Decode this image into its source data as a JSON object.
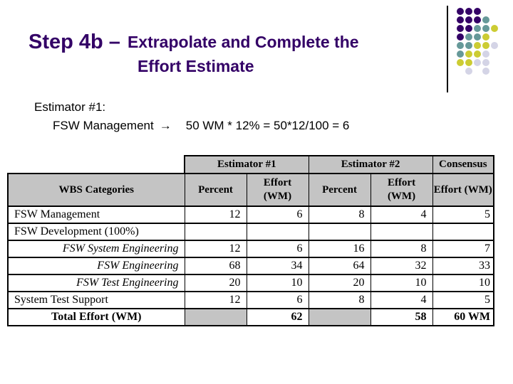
{
  "title": {
    "step": "Step 4b –",
    "line1": "Extrapolate and Complete the",
    "line2": "Effort Estimate"
  },
  "body": {
    "line1": "Estimator #1:",
    "line2_label": "FSW Management",
    "line2_arrow": "→",
    "line2_formula": "50 WM * 12% = 50*12/100 = 6"
  },
  "colors": {
    "title_text": "#330066",
    "header_fill": "#C4C4C4",
    "background": "#FFFFFF"
  },
  "decoration": {
    "dot_colors": {
      "purple": "#330066",
      "teal": "#669999",
      "yellow": "#CCCC33",
      "lavender": "#D4D4E6"
    },
    "dot_rows": [
      [
        "purple",
        "purple",
        "purple",
        null,
        null
      ],
      [
        "purple",
        "purple",
        "purple",
        "teal",
        null
      ],
      [
        "purple",
        "purple",
        "teal",
        "teal",
        "yellow"
      ],
      [
        "purple",
        "teal",
        "teal",
        "yellow",
        null
      ],
      [
        "teal",
        "teal",
        "yellow",
        "yellow",
        "lavender"
      ],
      [
        "teal",
        "yellow",
        "yellow",
        "lavender",
        null
      ],
      [
        "yellow",
        "yellow",
        "lavender",
        "lavender",
        null
      ],
      [
        null,
        "lavender",
        null,
        "lavender",
        null
      ]
    ]
  },
  "table": {
    "group_headers": [
      {
        "label": "Estimator #1",
        "span": 2
      },
      {
        "label": "Estimator #2",
        "span": 2
      },
      {
        "label": "Consensus",
        "span": 1
      }
    ],
    "col_headers": [
      "WBS Categories",
      "Percent",
      "Effort\n(WM)",
      "Percent",
      "Effort\n(WM)",
      "Effort (WM)"
    ],
    "rows": [
      {
        "label": "FSW Management",
        "style": "normal",
        "values": [
          "12",
          "6",
          "8",
          "4",
          "5"
        ]
      },
      {
        "label": "FSW Development (100%)",
        "style": "normal",
        "values": [
          "",
          "",
          "",
          "",
          ""
        ]
      },
      {
        "label": "FSW System Engineering",
        "style": "italic",
        "values": [
          "12",
          "6",
          "16",
          "8",
          "7"
        ]
      },
      {
        "label": "FSW Engineering",
        "style": "italic",
        "values": [
          "68",
          "34",
          "64",
          "32",
          "33"
        ]
      },
      {
        "label": "FSW Test Engineering",
        "style": "italic",
        "values": [
          "20",
          "10",
          "20",
          "10",
          "10"
        ]
      },
      {
        "label": "System Test Support",
        "style": "normal",
        "values": [
          "12",
          "6",
          "8",
          "4",
          "5"
        ]
      },
      {
        "label": "Total Effort (WM)",
        "style": "total",
        "values": [
          "",
          "62",
          "",
          "58",
          "60 WM"
        ]
      }
    ]
  }
}
